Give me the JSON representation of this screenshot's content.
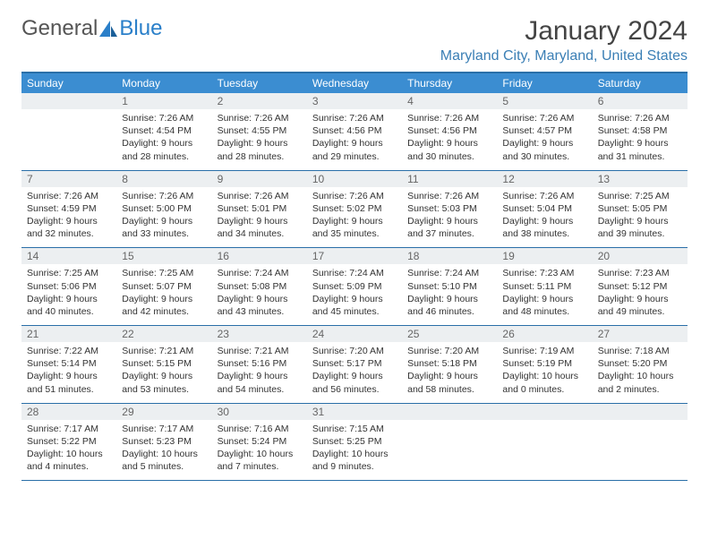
{
  "brand": {
    "part1": "General",
    "part2": "Blue"
  },
  "title": "January 2024",
  "location": "Maryland City, Maryland, United States",
  "colors": {
    "header_bg": "#3b8dd1",
    "header_rule": "#2a6fa8",
    "location_color": "#3b7fb5",
    "daynum_bg": "#eceff1",
    "logo_blue": "#2a7fc9"
  },
  "weekdays": [
    "Sunday",
    "Monday",
    "Tuesday",
    "Wednesday",
    "Thursday",
    "Friday",
    "Saturday"
  ],
  "cells": [
    {
      "n": "",
      "sr": "",
      "ss": "",
      "dl": ""
    },
    {
      "n": "1",
      "sr": "7:26 AM",
      "ss": "4:54 PM",
      "dl": "9 hours and 28 minutes."
    },
    {
      "n": "2",
      "sr": "7:26 AM",
      "ss": "4:55 PM",
      "dl": "9 hours and 28 minutes."
    },
    {
      "n": "3",
      "sr": "7:26 AM",
      "ss": "4:56 PM",
      "dl": "9 hours and 29 minutes."
    },
    {
      "n": "4",
      "sr": "7:26 AM",
      "ss": "4:56 PM",
      "dl": "9 hours and 30 minutes."
    },
    {
      "n": "5",
      "sr": "7:26 AM",
      "ss": "4:57 PM",
      "dl": "9 hours and 30 minutes."
    },
    {
      "n": "6",
      "sr": "7:26 AM",
      "ss": "4:58 PM",
      "dl": "9 hours and 31 minutes."
    },
    {
      "n": "7",
      "sr": "7:26 AM",
      "ss": "4:59 PM",
      "dl": "9 hours and 32 minutes."
    },
    {
      "n": "8",
      "sr": "7:26 AM",
      "ss": "5:00 PM",
      "dl": "9 hours and 33 minutes."
    },
    {
      "n": "9",
      "sr": "7:26 AM",
      "ss": "5:01 PM",
      "dl": "9 hours and 34 minutes."
    },
    {
      "n": "10",
      "sr": "7:26 AM",
      "ss": "5:02 PM",
      "dl": "9 hours and 35 minutes."
    },
    {
      "n": "11",
      "sr": "7:26 AM",
      "ss": "5:03 PM",
      "dl": "9 hours and 37 minutes."
    },
    {
      "n": "12",
      "sr": "7:26 AM",
      "ss": "5:04 PM",
      "dl": "9 hours and 38 minutes."
    },
    {
      "n": "13",
      "sr": "7:25 AM",
      "ss": "5:05 PM",
      "dl": "9 hours and 39 minutes."
    },
    {
      "n": "14",
      "sr": "7:25 AM",
      "ss": "5:06 PM",
      "dl": "9 hours and 40 minutes."
    },
    {
      "n": "15",
      "sr": "7:25 AM",
      "ss": "5:07 PM",
      "dl": "9 hours and 42 minutes."
    },
    {
      "n": "16",
      "sr": "7:24 AM",
      "ss": "5:08 PM",
      "dl": "9 hours and 43 minutes."
    },
    {
      "n": "17",
      "sr": "7:24 AM",
      "ss": "5:09 PM",
      "dl": "9 hours and 45 minutes."
    },
    {
      "n": "18",
      "sr": "7:24 AM",
      "ss": "5:10 PM",
      "dl": "9 hours and 46 minutes."
    },
    {
      "n": "19",
      "sr": "7:23 AM",
      "ss": "5:11 PM",
      "dl": "9 hours and 48 minutes."
    },
    {
      "n": "20",
      "sr": "7:23 AM",
      "ss": "5:12 PM",
      "dl": "9 hours and 49 minutes."
    },
    {
      "n": "21",
      "sr": "7:22 AM",
      "ss": "5:14 PM",
      "dl": "9 hours and 51 minutes."
    },
    {
      "n": "22",
      "sr": "7:21 AM",
      "ss": "5:15 PM",
      "dl": "9 hours and 53 minutes."
    },
    {
      "n": "23",
      "sr": "7:21 AM",
      "ss": "5:16 PM",
      "dl": "9 hours and 54 minutes."
    },
    {
      "n": "24",
      "sr": "7:20 AM",
      "ss": "5:17 PM",
      "dl": "9 hours and 56 minutes."
    },
    {
      "n": "25",
      "sr": "7:20 AM",
      "ss": "5:18 PM",
      "dl": "9 hours and 58 minutes."
    },
    {
      "n": "26",
      "sr": "7:19 AM",
      "ss": "5:19 PM",
      "dl": "10 hours and 0 minutes."
    },
    {
      "n": "27",
      "sr": "7:18 AM",
      "ss": "5:20 PM",
      "dl": "10 hours and 2 minutes."
    },
    {
      "n": "28",
      "sr": "7:17 AM",
      "ss": "5:22 PM",
      "dl": "10 hours and 4 minutes."
    },
    {
      "n": "29",
      "sr": "7:17 AM",
      "ss": "5:23 PM",
      "dl": "10 hours and 5 minutes."
    },
    {
      "n": "30",
      "sr": "7:16 AM",
      "ss": "5:24 PM",
      "dl": "10 hours and 7 minutes."
    },
    {
      "n": "31",
      "sr": "7:15 AM",
      "ss": "5:25 PM",
      "dl": "10 hours and 9 minutes."
    },
    {
      "n": "",
      "sr": "",
      "ss": "",
      "dl": ""
    },
    {
      "n": "",
      "sr": "",
      "ss": "",
      "dl": ""
    },
    {
      "n": "",
      "sr": "",
      "ss": "",
      "dl": ""
    }
  ],
  "labels": {
    "sunrise": "Sunrise:",
    "sunset": "Sunset:",
    "daylight": "Daylight:"
  }
}
